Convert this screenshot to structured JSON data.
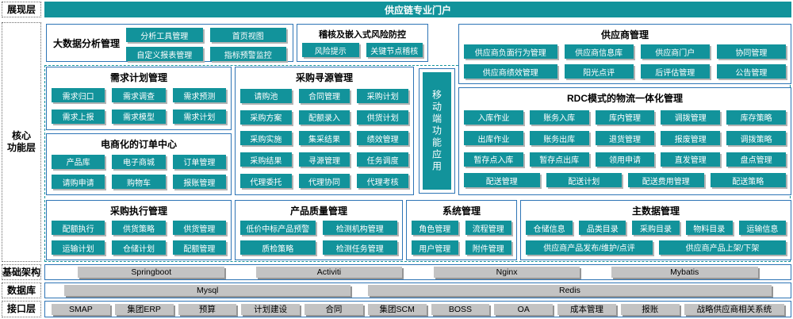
{
  "title_bar": {
    "label": "供应链专业门户"
  },
  "layers": {
    "presentation": "展现层",
    "core_line1": "核心",
    "core_line2": "功能层",
    "infrastructure": "基础架构",
    "database": "数据库",
    "interface": "接口层"
  },
  "colors": {
    "teal": "#12939b",
    "border_blue": "#2e75b6",
    "bar_gray": "#c3c3c3"
  },
  "sections": [
    {
      "id": "bigdata",
      "title": "大数据分析管理",
      "buttons": [
        "分析工具管理",
        "首页视图",
        "自定义报表管理",
        "指标预警监控"
      ]
    },
    {
      "id": "audit",
      "title": "稽核及嵌入式风险防控",
      "buttons": [
        "风险提示",
        "关键节点稽核"
      ]
    },
    {
      "id": "supplier",
      "title": "供应商管理",
      "buttons": [
        "供应商负面行为管理",
        "供应商信息库",
        "供应商门户",
        "协同管理",
        "供应商绩效管理",
        "阳光点评",
        "后评估管理",
        "公告管理"
      ]
    },
    {
      "id": "demand",
      "title": "需求计划管理",
      "buttons": [
        "需求归口",
        "需求调查",
        "需求预测",
        "需求上报",
        "需求模型",
        "需求计划"
      ]
    },
    {
      "id": "order",
      "title": "电商化的订单中心",
      "buttons": [
        "产品库",
        "电子商城",
        "订单管理",
        "请购申请",
        "购物车",
        "报账管理"
      ]
    },
    {
      "id": "sourcing",
      "title": "采购寻源管理",
      "buttons": [
        "请购池",
        "合同管理",
        "采购计划",
        "采购方案",
        "配额录入",
        "供货计划",
        "采购实施",
        "集采结果",
        "绩效管理",
        "采购结果",
        "寻源管理",
        "任务调度",
        "代理委托",
        "代理协同",
        "代理考核"
      ]
    },
    {
      "id": "mobile",
      "title": "移动端功能应用"
    },
    {
      "id": "rdc",
      "title": "RDC模式的物流一体化管理",
      "rows": [
        [
          "入库作业",
          "账务入库",
          "库内管理",
          "调拨管理",
          "库存策略"
        ],
        [
          "出库作业",
          "账务出库",
          "退货管理",
          "报废管理",
          "调拨策略"
        ],
        [
          "暂存点入库",
          "暂存点出库",
          "领用申请",
          "直发管理",
          "盘点管理"
        ],
        [
          "配送管理",
          "配送计划",
          "配送费用管理",
          "配送策略"
        ]
      ]
    },
    {
      "id": "purchase_exec",
      "title": "采购执行管理",
      "buttons": [
        "配额执行",
        "供货策略",
        "供货管理",
        "运输计划",
        "仓储计划",
        "配额管理"
      ]
    },
    {
      "id": "quality",
      "title": "产品质量管理",
      "buttons": [
        "低价中标产品预警",
        "检测机构管理",
        "质检策略",
        "检测任务管理"
      ]
    },
    {
      "id": "system",
      "title": "系统管理",
      "buttons": [
        "角色管理",
        "流程管理",
        "用户管理",
        "附件管理"
      ]
    },
    {
      "id": "masterdata",
      "title": "主数据管理",
      "rows": [
        [
          "仓储信息",
          "品类目录",
          "采购目录",
          "物料目录",
          "运输信息"
        ],
        [
          "供应商产品发布/维护/点评",
          "供应商产品上架/下架"
        ]
      ]
    }
  ],
  "infrastructure_items": [
    "Springboot",
    "Activiti",
    "Nginx",
    "Mybatis"
  ],
  "database_items": [
    "Mysql",
    "Redis"
  ],
  "interface_items": [
    "SMAP",
    "集团ERP",
    "预算",
    "计划建设",
    "合同",
    "集团SCM",
    "BOSS",
    "OA",
    "成本管理",
    "报账",
    "战略供应商相关系统"
  ]
}
